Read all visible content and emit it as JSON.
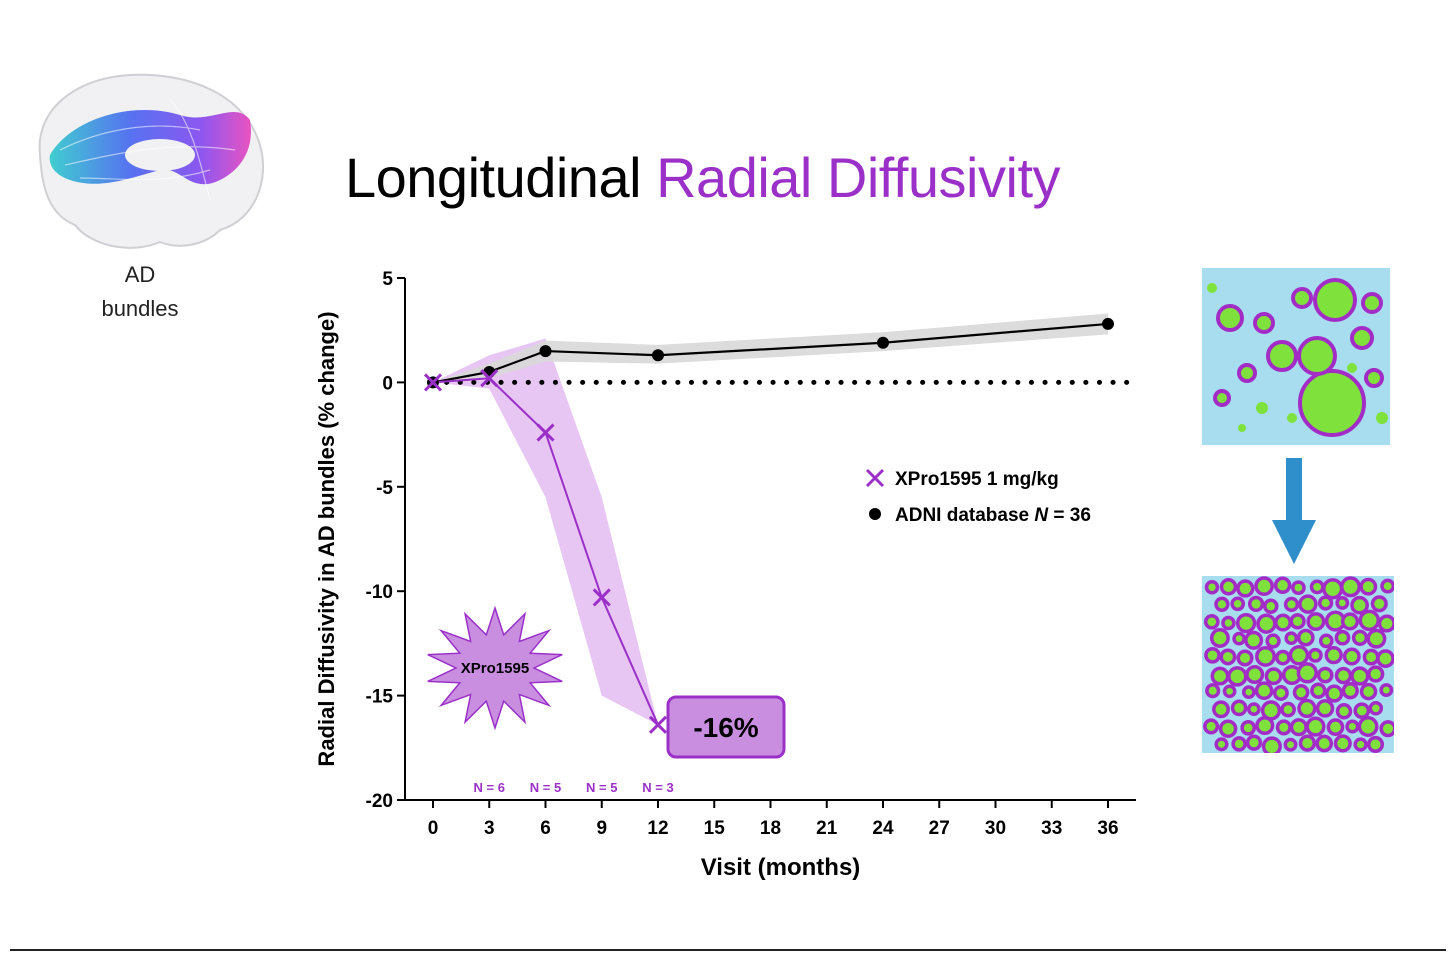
{
  "title": {
    "part1": "Longitudinal",
    "part2": "Radial Diffusivity"
  },
  "brain": {
    "label_line1": "AD",
    "label_line2": "bundles"
  },
  "chart_data": {
    "type": "line",
    "ylabel": "Radial Diffusivity in AD bundles (% change)",
    "xlabel": "Visit (months)",
    "xlim": [
      0,
      36
    ],
    "ylim": [
      -20,
      5
    ],
    "xticks": [
      0,
      3,
      6,
      9,
      12,
      15,
      18,
      21,
      24,
      27,
      30,
      33,
      36
    ],
    "yticks": [
      5,
      0,
      -5,
      -10,
      -15,
      -20
    ],
    "reference_line": {
      "y": 0,
      "style": "dotted"
    },
    "series": [
      {
        "name": "XPro1595 1 mg/kg",
        "marker": "x",
        "color": "#9b30c8",
        "band_color": "#e2b8f0",
        "x": [
          0,
          3,
          6,
          9,
          12
        ],
        "y": [
          0,
          0.2,
          -2.4,
          -10.3,
          -16.4
        ],
        "lower": [
          0,
          -0.3,
          -5.5,
          -15.0,
          -16.4
        ],
        "upper": [
          0,
          1.3,
          2.1,
          -5.5,
          -16.4
        ]
      },
      {
        "name": "ADNI database N = 36",
        "marker": "circle",
        "color": "#000000",
        "band_color": "#d8d8d8",
        "x": [
          0,
          3,
          6,
          12,
          24,
          36
        ],
        "y": [
          0,
          0.5,
          1.5,
          1.3,
          1.9,
          2.8
        ],
        "lower": [
          0,
          0.2,
          1.0,
          0.9,
          1.5,
          2.3
        ],
        "upper": [
          0,
          0.9,
          2.0,
          1.8,
          2.4,
          3.3
        ]
      }
    ],
    "sample_sizes": [
      {
        "x": 3,
        "label": "N = 6"
      },
      {
        "x": 6,
        "label": "N = 5"
      },
      {
        "x": 9,
        "label": "N = 5"
      },
      {
        "x": 12,
        "label": "N = 3"
      }
    ],
    "legend": {
      "position": "right",
      "entries": [
        {
          "label": "XPro1595 1 mg/kg",
          "marker": "x",
          "color": "#9b30c8"
        },
        {
          "label_prefix": "ADNI database ",
          "label_italic": "N",
          "label_suffix": " = 36",
          "marker": "circle",
          "color": "#000000"
        }
      ]
    },
    "annotations": {
      "starburst_label": "XPro1595",
      "result_label": "-16%"
    }
  },
  "colors": {
    "accent": "#9b30c8",
    "micrograph_background": "#a8dcef",
    "micrograph_fiber": "#7fe23c",
    "micrograph_myelin": "#a32bc6",
    "arrow": "#2f8fcb"
  }
}
